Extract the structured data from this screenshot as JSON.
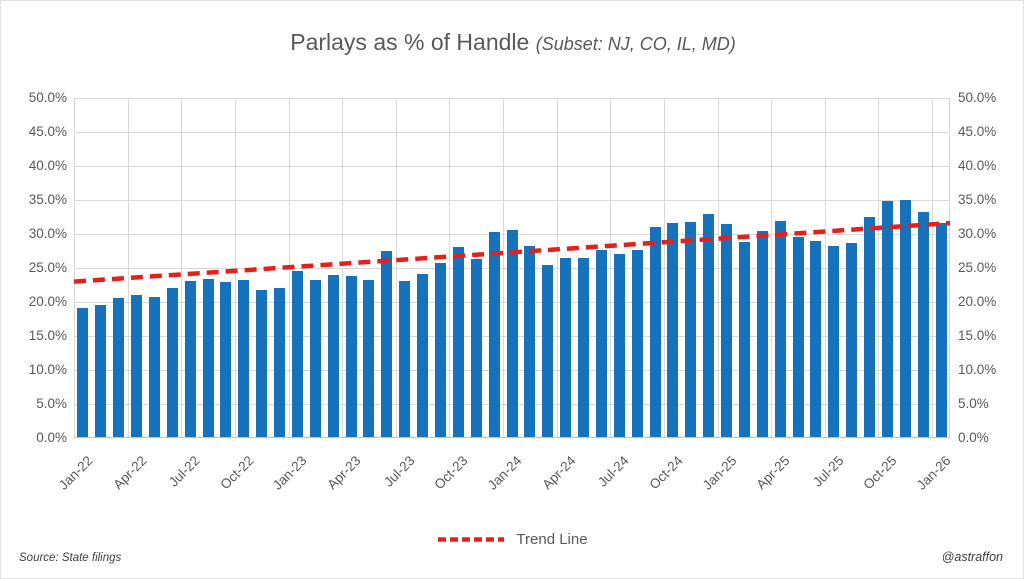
{
  "title": {
    "main": "Parlays as % of Handle",
    "subtitle": "(Subset: NJ, CO, IL, MD)"
  },
  "legend": {
    "trend_label": "Trend Line"
  },
  "footer": {
    "source": "Source: State filings",
    "credit": "@astraffon"
  },
  "colors": {
    "bar": "#1572bb",
    "trend": "#e3211a",
    "grid": "#d9d9d9",
    "axis_line": "#bfbfbf",
    "axis_text": "#595959",
    "title_text": "#595959",
    "footer_text": "#3f3f3f"
  },
  "chart_data": {
    "type": "bar",
    "title": "Parlays as % of Handle",
    "subtitle": "(Subset: NJ, CO, IL, MD)",
    "xlabel": "",
    "ylabel": "",
    "ylim": [
      0,
      50
    ],
    "y_tick_step": 5,
    "grid": true,
    "dual_y_axis": true,
    "legend_position": "bottom",
    "legend_entries": [
      "Trend Line"
    ],
    "y_tick_labels": [
      "0.0%",
      "5.0%",
      "10.0%",
      "15.0%",
      "20.0%",
      "25.0%",
      "30.0%",
      "35.0%",
      "40.0%",
      "45.0%",
      "50.0%"
    ],
    "x": [
      "Jan-22",
      "Feb-22",
      "Mar-22",
      "Apr-22",
      "May-22",
      "Jun-22",
      "Jul-22",
      "Aug-22",
      "Sep-22",
      "Oct-22",
      "Nov-22",
      "Dec-22",
      "Jan-23",
      "Feb-23",
      "Mar-23",
      "Apr-23",
      "May-23",
      "Jun-23",
      "Jul-23",
      "Aug-23",
      "Sep-23",
      "Oct-23",
      "Nov-23",
      "Dec-23",
      "Jan-24",
      "Feb-24",
      "Mar-24",
      "Apr-24",
      "May-24",
      "Jun-24",
      "Jul-24",
      "Aug-24",
      "Sep-24",
      "Oct-24",
      "Nov-24",
      "Dec-24",
      "Jan-25",
      "Feb-25",
      "Mar-25",
      "Apr-25",
      "May-25",
      "Jun-25",
      "Jul-25",
      "Aug-25",
      "Sep-25",
      "Oct-25",
      "Nov-25",
      "Dec-25",
      "Jan-26"
    ],
    "values": [
      19.1,
      19.5,
      20.6,
      21.1,
      20.7,
      22.0,
      23.1,
      23.4,
      23.0,
      23.3,
      21.8,
      22.1,
      24.6,
      23.3,
      23.9,
      23.8,
      23.2,
      27.5,
      23.1,
      24.1,
      25.8,
      28.1,
      26.3,
      30.3,
      30.6,
      28.2,
      25.5,
      26.4,
      26.5,
      27.7,
      27.1,
      27.6,
      31.0,
      31.6,
      31.8,
      32.9,
      31.4,
      28.8,
      30.4,
      31.9,
      29.6,
      29.0,
      28.3,
      28.7,
      32.5,
      34.8,
      35.0,
      33.2,
      31.6
    ],
    "x_tick_labels": [
      "Jan-22",
      "Apr-22",
      "Jul-22",
      "Oct-22",
      "Jan-23",
      "Apr-23",
      "Jul-23",
      "Oct-23",
      "Jan-24",
      "Apr-24",
      "Jul-24",
      "Oct-24",
      "Jan-25",
      "Apr-25",
      "Jul-25",
      "Oct-25",
      "Jan-26"
    ],
    "x_tick_every": 3,
    "trend_line": {
      "style": "dashed",
      "color": "#e3211a",
      "start_pct": 23.0,
      "end_pct": 31.6
    }
  }
}
